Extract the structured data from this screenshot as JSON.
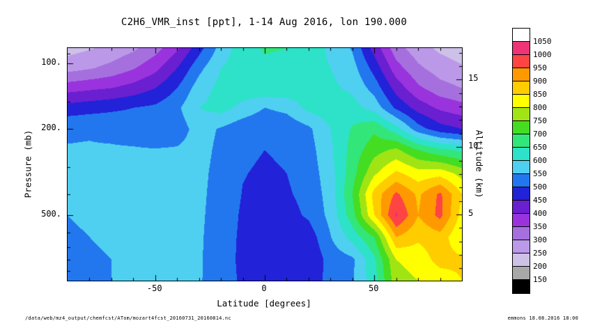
{
  "footer": {
    "left": "/data/web/mz4_output/chemfcst/ATom/mozart4fcst_20160731_20160814.nc",
    "right": "emmons 18.08.2016 18:00"
  },
  "chart_data": {
    "type": "heatmap",
    "title": "C2H6_VMR_inst [ppt], 1-14 Aug 2016, lon 190.000",
    "xlabel": "Latitude [degrees]",
    "ylabel_left": "Pressure (mb)",
    "ylabel_right": "Altitude (km)",
    "units": "ppt",
    "x_major_ticks": [
      {
        "value": -50,
        "label": "-50"
      },
      {
        "value": 0,
        "label": "0"
      },
      {
        "value": 50,
        "label": "50"
      }
    ],
    "x_minor_step": 10,
    "y_left_major_ticks": [
      {
        "value": 100,
        "label": "100."
      },
      {
        "value": 200,
        "label": "200."
      },
      {
        "value": 500,
        "label": "500."
      }
    ],
    "y_left_minor_ticks": [
      90,
      150,
      300,
      400,
      600,
      700,
      800,
      900
    ],
    "y_right_major_ticks": [
      {
        "value": 15,
        "label": "15"
      },
      {
        "value": 10,
        "label": "10"
      },
      {
        "value": 5,
        "label": "5"
      }
    ],
    "y_right_minor_ticks": [
      1,
      2,
      3,
      4,
      5,
      6,
      7,
      8,
      9,
      10,
      11,
      12,
      13,
      14,
      15,
      16,
      17
    ],
    "altitude_scale": {
      "p0_mb": 1013,
      "scale_height_km": 7.0
    },
    "colorbar": {
      "levels": [
        150,
        200,
        250,
        300,
        350,
        400,
        450,
        500,
        550,
        600,
        650,
        700,
        750,
        800,
        850,
        900,
        950,
        1000,
        1050
      ],
      "colors": [
        "#000000",
        "#a8a8a8",
        "#cdc1e8",
        "#bb99e8",
        "#a570de",
        "#9933dd",
        "#6a1fd0",
        "#2222d8",
        "#2277ee",
        "#4fd0f0",
        "#2de2c8",
        "#33e67a",
        "#44dd22",
        "#a0e414",
        "#ffff00",
        "#ffcc00",
        "#ff9900",
        "#ff4444",
        "#ee3377",
        "#ffffff"
      ]
    },
    "x_lat": [
      -90,
      -80,
      -70,
      -60,
      -50,
      -40,
      -30,
      -20,
      -10,
      0,
      10,
      20,
      30,
      40,
      50,
      60,
      70,
      80,
      90
    ],
    "y_pressure_mb": [
      85,
      105,
      130,
      160,
      200,
      250,
      320,
      400,
      500,
      630,
      800,
      1000
    ],
    "values_ppt": [
      [
        230,
        245,
        265,
        290,
        330,
        390,
        480,
        570,
        630,
        655,
        650,
        630,
        590,
        545,
        430,
        320,
        270,
        240,
        225
      ],
      [
        280,
        295,
        315,
        345,
        385,
        450,
        535,
        600,
        625,
        640,
        635,
        620,
        600,
        570,
        480,
        370,
        310,
        275,
        255
      ],
      [
        380,
        390,
        400,
        420,
        450,
        500,
        575,
        615,
        630,
        640,
        635,
        625,
        610,
        590,
        530,
        430,
        360,
        320,
        300
      ],
      [
        470,
        480,
        490,
        500,
        510,
        540,
        600,
        620,
        585,
        550,
        565,
        615,
        630,
        620,
        580,
        490,
        430,
        390,
        370
      ],
      [
        545,
        546,
        540,
        530,
        510,
        525,
        570,
        545,
        515,
        505,
        512,
        540,
        600,
        655,
        690,
        620,
        520,
        470,
        450
      ],
      [
        552,
        553,
        554,
        554,
        553,
        555,
        568,
        538,
        508,
        500,
        506,
        530,
        590,
        670,
        730,
        760,
        700,
        660,
        640
      ],
      [
        552,
        553,
        554,
        555,
        556,
        558,
        564,
        532,
        502,
        494,
        500,
        522,
        580,
        680,
        790,
        860,
        820,
        830,
        780
      ],
      [
        551,
        552,
        553,
        554,
        555,
        556,
        562,
        528,
        498,
        490,
        494,
        515,
        572,
        700,
        870,
        960,
        890,
        960,
        850
      ],
      [
        550,
        551,
        552,
        553,
        554,
        555,
        560,
        524,
        494,
        485,
        482,
        508,
        565,
        680,
        850,
        1010,
        900,
        965,
        830
      ],
      [
        549,
        550,
        551,
        552,
        553,
        554,
        558,
        520,
        492,
        482,
        465,
        472,
        548,
        620,
        700,
        900,
        860,
        880,
        800
      ],
      [
        549,
        549,
        550,
        551,
        552,
        553,
        556,
        520,
        490,
        478,
        450,
        456,
        520,
        540,
        640,
        800,
        820,
        870,
        860
      ],
      [
        548,
        549,
        550,
        550,
        551,
        552,
        555,
        522,
        492,
        480,
        455,
        462,
        522,
        545,
        630,
        780,
        800,
        820,
        850
      ]
    ]
  }
}
